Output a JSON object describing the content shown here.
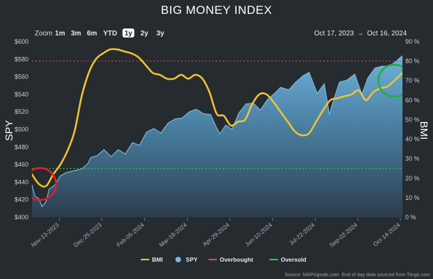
{
  "chart_data": {
    "type": "line",
    "title": "BIG MONEY INDEX",
    "range_selector": {
      "label": "Zoom",
      "buttons": [
        "1m",
        "3m",
        "6m",
        "YTD",
        "1y",
        "2y",
        "3y"
      ],
      "selected": "1y"
    },
    "date_range": {
      "start": "Oct 17, 2023",
      "arrow": "→",
      "end": "Oct 16, 2024"
    },
    "y_left": {
      "label": "SPY",
      "min": 400,
      "max": 600,
      "ticks": [
        "$600",
        "$580",
        "$560",
        "$540",
        "$520",
        "$500",
        "$480",
        "$460",
        "$440",
        "$420",
        "$400"
      ]
    },
    "y_right": {
      "label": "BMI",
      "min": 0,
      "max": 90,
      "ticks": [
        "90 %",
        "80 %",
        "70 %",
        "60 %",
        "50 %",
        "40 %",
        "30 %",
        "20 %",
        "10 %",
        "0 %"
      ]
    },
    "x_ticks": [
      "Nov-13-2023",
      "Dec-25-2023",
      "Feb-05-2024",
      "Mar-18-2024",
      "Apr-29-2024",
      "Jun-10-2024",
      "Jul-22-2024",
      "Sep-02-2024",
      "Oct-14-2024"
    ],
    "x_domain": [
      "2023-10-17",
      "2024-10-16"
    ],
    "thresholds": [
      {
        "name": "Overbought",
        "value": 80,
        "color": "#e0405e"
      },
      {
        "name": "Oversold",
        "value": 25,
        "color": "#2ecc40"
      }
    ],
    "series": [
      {
        "name": "SPY",
        "type": "area",
        "axis": "left",
        "color": "#7ab6dc",
        "points": [
          [
            "2023-10-17",
            437
          ],
          [
            "2023-10-20",
            424
          ],
          [
            "2023-10-24",
            421
          ],
          [
            "2023-10-27",
            412
          ],
          [
            "2023-10-31",
            418
          ],
          [
            "2023-11-03",
            432
          ],
          [
            "2023-11-08",
            436
          ],
          [
            "2023-11-14",
            447
          ],
          [
            "2023-11-20",
            451
          ],
          [
            "2023-11-28",
            453
          ],
          [
            "2023-12-05",
            455
          ],
          [
            "2023-12-11",
            461
          ],
          [
            "2023-12-14",
            468
          ],
          [
            "2023-12-20",
            470
          ],
          [
            "2023-12-27",
            477
          ],
          [
            "2024-01-03",
            469
          ],
          [
            "2024-01-10",
            477
          ],
          [
            "2024-01-17",
            472
          ],
          [
            "2024-01-24",
            485
          ],
          [
            "2024-01-31",
            482
          ],
          [
            "2024-02-07",
            497
          ],
          [
            "2024-02-14",
            501
          ],
          [
            "2024-02-21",
            496
          ],
          [
            "2024-02-28",
            507
          ],
          [
            "2024-03-06",
            512
          ],
          [
            "2024-03-13",
            513
          ],
          [
            "2024-03-20",
            520
          ],
          [
            "2024-03-27",
            523
          ],
          [
            "2024-04-03",
            518
          ],
          [
            "2024-04-10",
            517
          ],
          [
            "2024-04-15",
            504
          ],
          [
            "2024-04-19",
            495
          ],
          [
            "2024-04-25",
            505
          ],
          [
            "2024-05-01",
            500
          ],
          [
            "2024-05-08",
            519
          ],
          [
            "2024-05-15",
            529
          ],
          [
            "2024-05-22",
            530
          ],
          [
            "2024-05-29",
            522
          ],
          [
            "2024-06-05",
            534
          ],
          [
            "2024-06-12",
            541
          ],
          [
            "2024-06-18",
            548
          ],
          [
            "2024-06-26",
            545
          ],
          [
            "2024-07-03",
            554
          ],
          [
            "2024-07-10",
            561
          ],
          [
            "2024-07-16",
            565
          ],
          [
            "2024-07-24",
            541
          ],
          [
            "2024-07-31",
            552
          ],
          [
            "2024-08-05",
            517
          ],
          [
            "2024-08-09",
            533
          ],
          [
            "2024-08-15",
            554
          ],
          [
            "2024-08-22",
            556
          ],
          [
            "2024-08-30",
            563
          ],
          [
            "2024-09-06",
            540
          ],
          [
            "2024-09-12",
            559
          ],
          [
            "2024-09-19",
            570
          ],
          [
            "2024-09-26",
            572
          ],
          [
            "2024-10-03",
            572
          ],
          [
            "2024-10-09",
            577
          ],
          [
            "2024-10-16",
            584
          ]
        ]
      },
      {
        "name": "BMI",
        "type": "line",
        "axis": "right",
        "color": "#f2c230",
        "points": [
          [
            "2023-10-17",
            22
          ],
          [
            "2023-10-24",
            17
          ],
          [
            "2023-10-31",
            16
          ],
          [
            "2023-11-07",
            22
          ],
          [
            "2023-11-14",
            27
          ],
          [
            "2023-11-21",
            34
          ],
          [
            "2023-11-28",
            44
          ],
          [
            "2023-12-05",
            62
          ],
          [
            "2023-12-12",
            74
          ],
          [
            "2023-12-19",
            81
          ],
          [
            "2023-12-26",
            84
          ],
          [
            "2024-01-02",
            86
          ],
          [
            "2024-01-09",
            86
          ],
          [
            "2024-01-16",
            85
          ],
          [
            "2024-01-23",
            84
          ],
          [
            "2024-01-30",
            82
          ],
          [
            "2024-02-06",
            78
          ],
          [
            "2024-02-13",
            74
          ],
          [
            "2024-02-20",
            73
          ],
          [
            "2024-02-27",
            71
          ],
          [
            "2024-03-05",
            71
          ],
          [
            "2024-03-12",
            73
          ],
          [
            "2024-03-19",
            71
          ],
          [
            "2024-03-26",
            73
          ],
          [
            "2024-04-02",
            71
          ],
          [
            "2024-04-09",
            64
          ],
          [
            "2024-04-16",
            53
          ],
          [
            "2024-04-23",
            52
          ],
          [
            "2024-04-30",
            47
          ],
          [
            "2024-05-07",
            49
          ],
          [
            "2024-05-14",
            50
          ],
          [
            "2024-05-21",
            58
          ],
          [
            "2024-05-28",
            63
          ],
          [
            "2024-06-04",
            63
          ],
          [
            "2024-06-11",
            59
          ],
          [
            "2024-06-18",
            54
          ],
          [
            "2024-06-25",
            49
          ],
          [
            "2024-07-02",
            44
          ],
          [
            "2024-07-09",
            42
          ],
          [
            "2024-07-16",
            43
          ],
          [
            "2024-07-23",
            49
          ],
          [
            "2024-07-30",
            55
          ],
          [
            "2024-08-06",
            60
          ],
          [
            "2024-08-13",
            61
          ],
          [
            "2024-08-20",
            62
          ],
          [
            "2024-08-27",
            63
          ],
          [
            "2024-09-03",
            65
          ],
          [
            "2024-09-10",
            60
          ],
          [
            "2024-09-17",
            64
          ],
          [
            "2024-09-24",
            66
          ],
          [
            "2024-10-01",
            67
          ],
          [
            "2024-10-08",
            70
          ],
          [
            "2024-10-16",
            74
          ]
        ]
      }
    ],
    "annotations": [
      {
        "shape": "circle",
        "color": "#e11d2a",
        "near": "2023-10-25"
      },
      {
        "shape": "circle",
        "color": "#22b03a",
        "near": "2024-10-08"
      }
    ],
    "legend": {
      "placement": "bottom-center",
      "items": [
        {
          "name": "BMI",
          "color": "#f2c230",
          "marker": "line"
        },
        {
          "name": "SPY",
          "color": "#7ab6dc",
          "marker": "dot"
        },
        {
          "name": "Overbought",
          "color": "#e0405e",
          "marker": "line"
        },
        {
          "name": "Oversold",
          "color": "#2ecc40",
          "marker": "line"
        }
      ]
    },
    "footer": "Source: MAPsignals.com. End of day data sourced from Tiingo.com"
  }
}
